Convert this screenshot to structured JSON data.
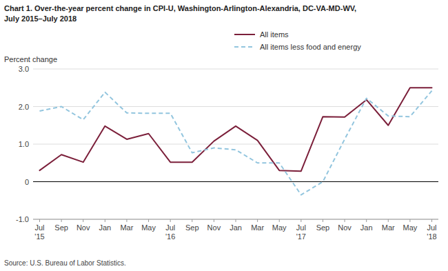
{
  "chart_data": {
    "type": "line",
    "title": "Chart 1. Over-the-year percent change in CPI-U, Washington-Arlington-Alexandria, DC-VA-MD-WV,",
    "subtitle": "July 2015–July 2018",
    "ylabel": "Percent change",
    "annotations": [
      "Source: U.S. Bureau of Labor Statistics."
    ],
    "categories": [
      "Jul\n'15",
      "Sep",
      "Nov",
      "Jan",
      "Mar",
      "May",
      "Jul\n'16",
      "Sep",
      "Nov",
      "Jan",
      "Mar",
      "May",
      "Jul\n'17",
      "Sep",
      "Nov",
      "Jan",
      "Mar",
      "May",
      "Jul\n'18"
    ],
    "series": [
      {
        "name": "All items",
        "color": "#7B1F3A",
        "line_style": "solid",
        "values": [
          0.3,
          0.72,
          0.52,
          1.48,
          1.13,
          1.28,
          0.52,
          0.52,
          1.08,
          1.48,
          1.1,
          0.3,
          0.28,
          1.73,
          1.72,
          2.18,
          1.5,
          2.5,
          2.5
        ]
      },
      {
        "name": "All items less food and energy",
        "color": "#92C5DE",
        "line_style": "dashed",
        "values": [
          1.88,
          2.0,
          1.65,
          2.38,
          1.83,
          1.82,
          1.82,
          0.77,
          0.9,
          0.85,
          0.5,
          0.5,
          -0.35,
          0.0,
          1.13,
          2.22,
          1.75,
          1.73,
          2.42
        ]
      }
    ],
    "ylim": [
      -1.0,
      3.0
    ],
    "yticks": [
      {
        "value": -1.0,
        "label": "-1.0"
      },
      0,
      {
        "value": 1.0,
        "label": "1.0"
      },
      {
        "value": 2.0,
        "label": "2.0"
      },
      {
        "value": 3.0,
        "label": "3.0"
      }
    ],
    "grid": true,
    "legend": "top"
  }
}
